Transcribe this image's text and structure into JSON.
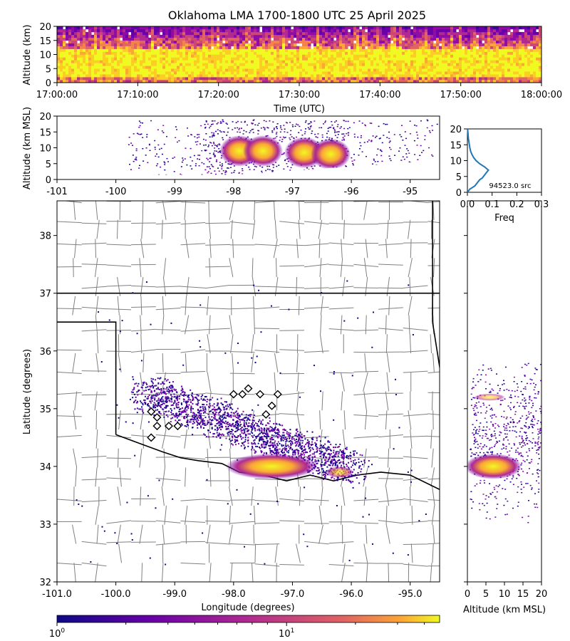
{
  "title": "Oklahoma LMA 1700-1800 UTC 25 April 2025",
  "chart_data": [
    {
      "id": "time_height",
      "type": "heatmap",
      "xlabel": "Time (UTC)",
      "ylabel": "Altitude (km)",
      "xticks": [
        "17:00:00",
        "17:10:00",
        "17:20:00",
        "17:30:00",
        "17:40:00",
        "17:50:00",
        "18:00:00"
      ],
      "xlim": [
        "17:00:00",
        "18:00:00"
      ],
      "yticks": [
        0,
        5,
        10,
        15,
        20
      ],
      "ylim": [
        0,
        20
      ],
      "dense_band_km": [
        2,
        12
      ]
    },
    {
      "id": "lon_alt",
      "type": "heatmap",
      "xlabel": "",
      "ylabel": "Altitude (km MSL)",
      "xticks": [
        -101,
        -100,
        -99,
        -98,
        -97,
        -96,
        -95
      ],
      "xlim": [
        -101,
        -94.5
      ],
      "yticks": [
        0,
        5,
        10,
        15,
        20
      ],
      "ylim": [
        0,
        20
      ],
      "cores": [
        {
          "lon": -97.9,
          "alt_km": 9
        },
        {
          "lon": -97.5,
          "alt_km": 9
        },
        {
          "lon": -96.8,
          "alt_km": 8.5
        },
        {
          "lon": -96.35,
          "alt_km": 8
        }
      ]
    },
    {
      "id": "alt_histogram",
      "type": "line",
      "xlabel": "Freq",
      "ylabel": "",
      "xticks": [
        "0.0",
        "0.1",
        "0.2",
        "0.3"
      ],
      "xlim": [
        0,
        0.3
      ],
      "yticks": [
        0,
        5,
        10,
        15,
        20
      ],
      "ylim": [
        0,
        20
      ],
      "source_count_label": "94523.0 src",
      "line_color": "#1f77b4",
      "points": [
        [
          0.001,
          0
        ],
        [
          0.005,
          0.5
        ],
        [
          0.01,
          1
        ],
        [
          0.02,
          1.5
        ],
        [
          0.03,
          2
        ],
        [
          0.035,
          2.5
        ],
        [
          0.04,
          3
        ],
        [
          0.045,
          3.5
        ],
        [
          0.05,
          4
        ],
        [
          0.06,
          4.5
        ],
        [
          0.065,
          5
        ],
        [
          0.07,
          5.5
        ],
        [
          0.075,
          6
        ],
        [
          0.08,
          6.5
        ],
        [
          0.085,
          7
        ],
        [
          0.07,
          8
        ],
        [
          0.05,
          9
        ],
        [
          0.035,
          10
        ],
        [
          0.025,
          11
        ],
        [
          0.018,
          12
        ],
        [
          0.013,
          13
        ],
        [
          0.01,
          14
        ],
        [
          0.008,
          15
        ],
        [
          0.006,
          16
        ],
        [
          0.004,
          17
        ],
        [
          0.003,
          18
        ],
        [
          0.002,
          19
        ],
        [
          0.001,
          20
        ]
      ]
    },
    {
      "id": "plan_view",
      "type": "scatter",
      "xlabel": "Longitude (degrees)",
      "ylabel": "Latitude (degrees)",
      "xticks": [
        "-101.0",
        "-100.0",
        "-99.0",
        "-98.0",
        "-97.0",
        "-96.0",
        "-95.0"
      ],
      "xlim": [
        -101,
        -94.5
      ],
      "yticks": [
        32,
        33,
        34,
        35,
        36,
        37,
        38
      ],
      "ylim": [
        32,
        38.6
      ],
      "stations": [
        {
          "lon": -98.0,
          "lat": 35.25
        },
        {
          "lon": -97.85,
          "lat": 35.25
        },
        {
          "lon": -97.75,
          "lat": 35.35
        },
        {
          "lon": -97.55,
          "lat": 35.25
        },
        {
          "lon": -97.35,
          "lat": 35.05
        },
        {
          "lon": -97.25,
          "lat": 35.25
        },
        {
          "lon": -97.45,
          "lat": 34.9
        },
        {
          "lon": -99.4,
          "lat": 34.95
        },
        {
          "lon": -99.3,
          "lat": 34.85
        },
        {
          "lon": -99.3,
          "lat": 34.7
        },
        {
          "lon": -99.1,
          "lat": 34.7
        },
        {
          "lon": -98.95,
          "lat": 34.7
        },
        {
          "lon": -99.4,
          "lat": 34.5
        }
      ],
      "dense_core": {
        "lon_range": [
          -98.2,
          -96.5
        ],
        "lat_range": [
          33.8,
          34.2
        ]
      }
    },
    {
      "id": "alt_lat",
      "type": "heatmap",
      "xlabel": "Altitude (km MSL)",
      "ylabel": "",
      "xticks": [
        0,
        5,
        10,
        15,
        20
      ],
      "xlim": [
        0,
        20
      ],
      "ylim": [
        32,
        38.6
      ],
      "dense_lat": 34.0
    }
  ],
  "colorbar": {
    "scale": "log",
    "ticks": [
      "10^0",
      "10^1"
    ],
    "colormap": "plasma"
  }
}
